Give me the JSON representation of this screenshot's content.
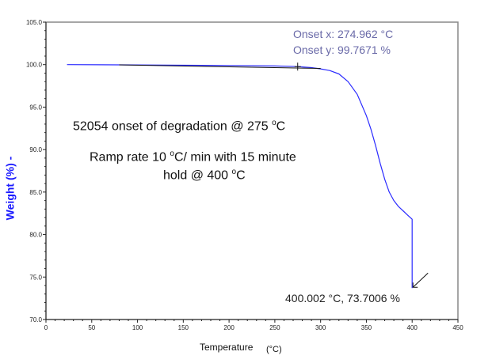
{
  "chart_data": {
    "type": "line",
    "xlabel": "Temperature",
    "xunit": "(°C)",
    "ylabel": "Weight (%) -",
    "xlim": [
      0,
      450
    ],
    "ylim": [
      70,
      105
    ],
    "xticks": [
      "0",
      "50",
      "100",
      "150",
      "200",
      "250",
      "300",
      "350",
      "400",
      "450"
    ],
    "yticks": [
      "70.0",
      "75.0",
      "80.0",
      "85.0",
      "90.0",
      "95.0",
      "100.0",
      "105.0"
    ],
    "grid": false,
    "series": [
      {
        "color": "#2b2bff",
        "x": [
          23,
          80,
          150,
          200,
          250,
          275,
          290,
          300,
          310,
          320,
          330,
          340,
          350,
          355,
          360,
          365,
          370,
          375,
          380,
          385,
          390,
          395,
          400,
          400,
          400
        ],
        "y": [
          100.0,
          99.97,
          99.93,
          99.9,
          99.84,
          99.77,
          99.65,
          99.5,
          99.3,
          98.9,
          98.0,
          96.5,
          94.0,
          92.4,
          90.5,
          88.4,
          86.5,
          85.0,
          84.0,
          83.3,
          82.8,
          82.3,
          81.8,
          78.0,
          73.7
        ]
      }
    ],
    "tangent": {
      "color": "#111111",
      "x": [
        80,
        300
      ],
      "y": [
        99.97,
        99.55
      ]
    },
    "onset_marker": {
      "x": 274.962,
      "y": 99.7671
    },
    "annotations": {
      "onset_x": "Onset x: 274.962 °C",
      "onset_y": "Onset y: 99.7671 %",
      "endpoint": "400.002 °C, 73.7006 %",
      "note1_pre": "52054 onset of degradation  @ 275 ",
      "note1_sup": "o",
      "note1_post": "C",
      "note2_pre": "Ramp rate 10 ",
      "note2_sup": "o",
      "note2_post": "C/ min with 15 minute",
      "note3_pre": "hold @ 400 ",
      "note3_sup": "o",
      "note3_post": "C"
    },
    "endpoint_marker": {
      "x": 400.002,
      "y": 73.7006
    }
  }
}
